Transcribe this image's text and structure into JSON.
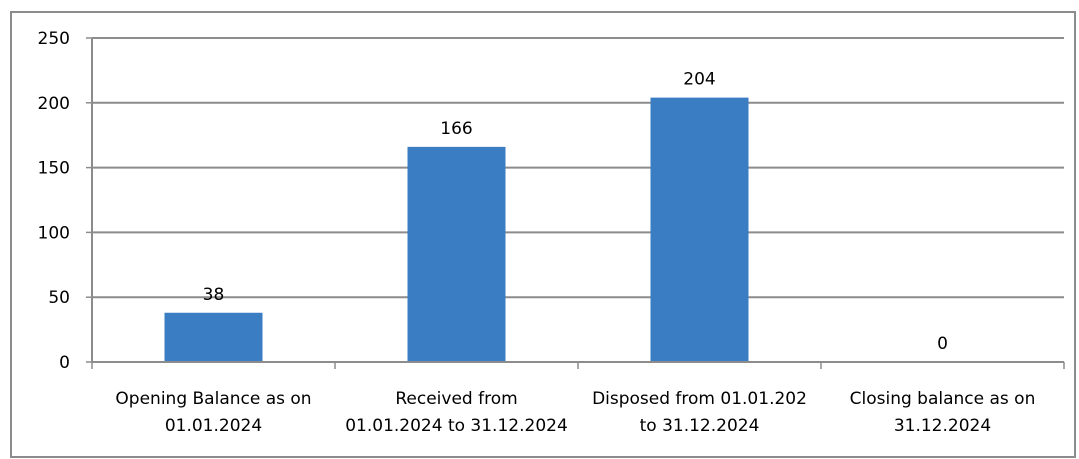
{
  "chart_data": {
    "type": "bar",
    "categories": [
      [
        "Opening Balance as on",
        "01.01.2024"
      ],
      [
        "Received from",
        "01.01.2024 to 31.12.2024"
      ],
      [
        "Disposed from 01.01.202",
        "to 31.12.2024"
      ],
      [
        "Closing balance as on",
        "31.12.2024"
      ]
    ],
    "values": [
      38,
      166,
      204,
      0
    ],
    "data_labels": [
      "38",
      "166",
      "204",
      "0"
    ],
    "y_ticks": [
      "0",
      "50",
      "100",
      "150",
      "200",
      "250"
    ],
    "ylim": [
      0,
      250
    ],
    "grid": true,
    "legend": "none",
    "colors": {
      "bar": "#3a7dc2",
      "grid": "#8c8c8c",
      "axis": "#8c8c8c",
      "border": "#8c8c8c"
    }
  }
}
